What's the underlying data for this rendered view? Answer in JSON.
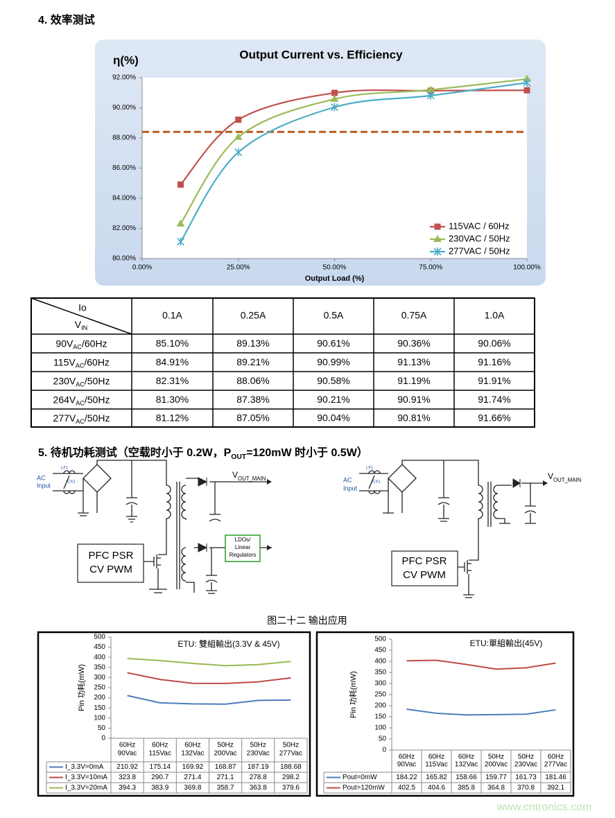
{
  "section4_title": "4.  效率测试",
  "chart_data": [
    {
      "type": "line",
      "title": "Output Current vs. Efficiency",
      "ylabel": "η(%)",
      "xlabel": "Output Load (%)",
      "x": [
        10,
        25,
        50,
        75,
        100
      ],
      "xlim": [
        0,
        100
      ],
      "xticks": [
        {
          "value": 0,
          "label": "0.00%"
        },
        {
          "value": 25,
          "label": "25.00%"
        },
        {
          "value": 50,
          "label": "50.00%"
        },
        {
          "value": 75,
          "label": "75.00%"
        },
        {
          "value": 100,
          "label": "100.00%"
        }
      ],
      "ylim": [
        80,
        92
      ],
      "yticks": [
        {
          "value": 80,
          "label": "80.00%"
        },
        {
          "value": 82,
          "label": "82.00%"
        },
        {
          "value": 84,
          "label": "84.00%"
        },
        {
          "value": 86,
          "label": "86.00%"
        },
        {
          "value": 88,
          "label": "88.00%"
        },
        {
          "value": 90,
          "label": "90.00%"
        },
        {
          "value": 92,
          "label": "92.00%"
        }
      ],
      "smooth": true,
      "grid": false,
      "legend": "lower right",
      "reference_line": {
        "value": 88.4,
        "color": "#b85b1d",
        "dashed": true
      },
      "series": [
        {
          "name": "115VAC / 60Hz",
          "color": "#c0504d",
          "marker": "square",
          "values": [
            84.91,
            89.21,
            90.99,
            91.13,
            91.16
          ]
        },
        {
          "name": "230VAC / 50Hz",
          "color": "#9bbb59",
          "marker": "triangle",
          "values": [
            82.31,
            88.06,
            90.58,
            91.19,
            91.91
          ]
        },
        {
          "name": "277VAC / 50Hz",
          "color": "#4bacc6",
          "marker": "star",
          "values": [
            81.12,
            87.05,
            90.04,
            90.81,
            91.66
          ]
        }
      ]
    },
    {
      "type": "line",
      "title": "ETU: 雙組輸出(3.3V & 45V)",
      "ylabel": "Pin 功耗(mW)",
      "categories": [
        [
          "60Hz",
          "90Vac"
        ],
        [
          "60Hz",
          "115Vac"
        ],
        [
          "60Hz",
          "132Vac"
        ],
        [
          "50Hz",
          "200Vac"
        ],
        [
          "50Hz",
          "230Vac"
        ],
        [
          "50Hz",
          "277Vac"
        ]
      ],
      "ylim": [
        0,
        500
      ],
      "yticks": [
        0,
        50,
        100,
        150,
        200,
        250,
        300,
        350,
        400,
        450,
        500
      ],
      "grid": false,
      "data_table": true,
      "series": [
        {
          "name": "I_3.3V=0mA",
          "color": "#4a7ebb",
          "values": [
            210.92,
            175.14,
            169.92,
            168.87,
            187.19,
            188.68
          ]
        },
        {
          "name": "I_3.3V=10mA",
          "color": "#be4b48",
          "values": [
            323.8,
            290.7,
            271.4,
            271.1,
            278.8,
            298.2
          ]
        },
        {
          "name": "I_3.3V=20mA",
          "color": "#98b954",
          "values": [
            394.3,
            383.9,
            369.8,
            358.7,
            363.8,
            379.6
          ]
        }
      ]
    },
    {
      "type": "line",
      "title": "ETU:單組輸出(45V)",
      "ylabel": "Pin 功耗(mW)",
      "categories": [
        [
          "60Hz",
          "90Vac"
        ],
        [
          "60Hz",
          "115Vac"
        ],
        [
          "60Hz",
          "132Vac"
        ],
        [
          "50Hz",
          "200Vac"
        ],
        [
          "50Hz",
          "230Vac"
        ],
        [
          "60Hz",
          "277Vac"
        ]
      ],
      "ylim": [
        0,
        500
      ],
      "yticks": [
        0,
        50,
        100,
        150,
        200,
        250,
        300,
        350,
        400,
        450,
        500
      ],
      "grid": false,
      "data_table": true,
      "series": [
        {
          "name": "Pout=0mW",
          "color": "#4a7ebb",
          "values": [
            184.22,
            165.82,
            158.66,
            159.77,
            161.73,
            181.46
          ]
        },
        {
          "name": "Pout=120mW",
          "color": "#be4b48",
          "values": [
            402.5,
            404.6,
            385.8,
            364.8,
            370.8,
            392.1
          ]
        }
      ]
    }
  ],
  "efficiency_table": {
    "corner_top": "Io",
    "corner_bottom": [
      "V",
      "IN"
    ],
    "columns": [
      "0.1A",
      "0.25A",
      "0.5A",
      "0.75A",
      "1.0A"
    ],
    "rows": [
      {
        "label": [
          "90V",
          "AC",
          "/60Hz"
        ],
        "cells": [
          "85.10%",
          "89.13%",
          "90.61%",
          "90.36%",
          "90.06%"
        ]
      },
      {
        "label": [
          "115V",
          "AC",
          "/60Hz"
        ],
        "cells": [
          "84.91%",
          "89.21%",
          "90.99%",
          "91.13%",
          "91.16%"
        ]
      },
      {
        "label": [
          "230V",
          "AC",
          "/50Hz"
        ],
        "cells": [
          "82.31%",
          "88.06%",
          "90.58%",
          "91.19%",
          "91.91%"
        ]
      },
      {
        "label": [
          "264V",
          "AC",
          "/50Hz"
        ],
        "cells": [
          "81.30%",
          "87.38%",
          "90.21%",
          "90.91%",
          "91.74%"
        ]
      },
      {
        "label": [
          "277V",
          "AC",
          "/50Hz"
        ],
        "cells": [
          "81.12%",
          "87.05%",
          "90.04%",
          "90.81%",
          "91.66%"
        ]
      }
    ]
  },
  "section5_title": [
    "5.  待机功耗测试（空载时小于 0.2W，P",
    "OUT",
    "=120mW 时小于 0.5W）"
  ],
  "diagrams": {
    "left": {
      "ac_input": [
        "AC",
        "Input"
      ],
      "lf1": "LF1",
      "cx1": "CX1",
      "vout": [
        "V",
        "OUT_MAIN"
      ],
      "ldo": [
        "LDOs/",
        "Linear",
        "Regulators"
      ],
      "controller": [
        "PFC PSR",
        "CV PWM"
      ]
    },
    "right": {
      "ac_input": [
        "AC",
        "Input"
      ],
      "lf1": "LF1",
      "cx1": "CX1",
      "vout": [
        "V",
        "OUT_MAIN"
      ],
      "controller": [
        "PFC PSR",
        "CV PWM"
      ]
    }
  },
  "caption": "图二十二  输出应用",
  "watermark": "www.cntronics.com"
}
